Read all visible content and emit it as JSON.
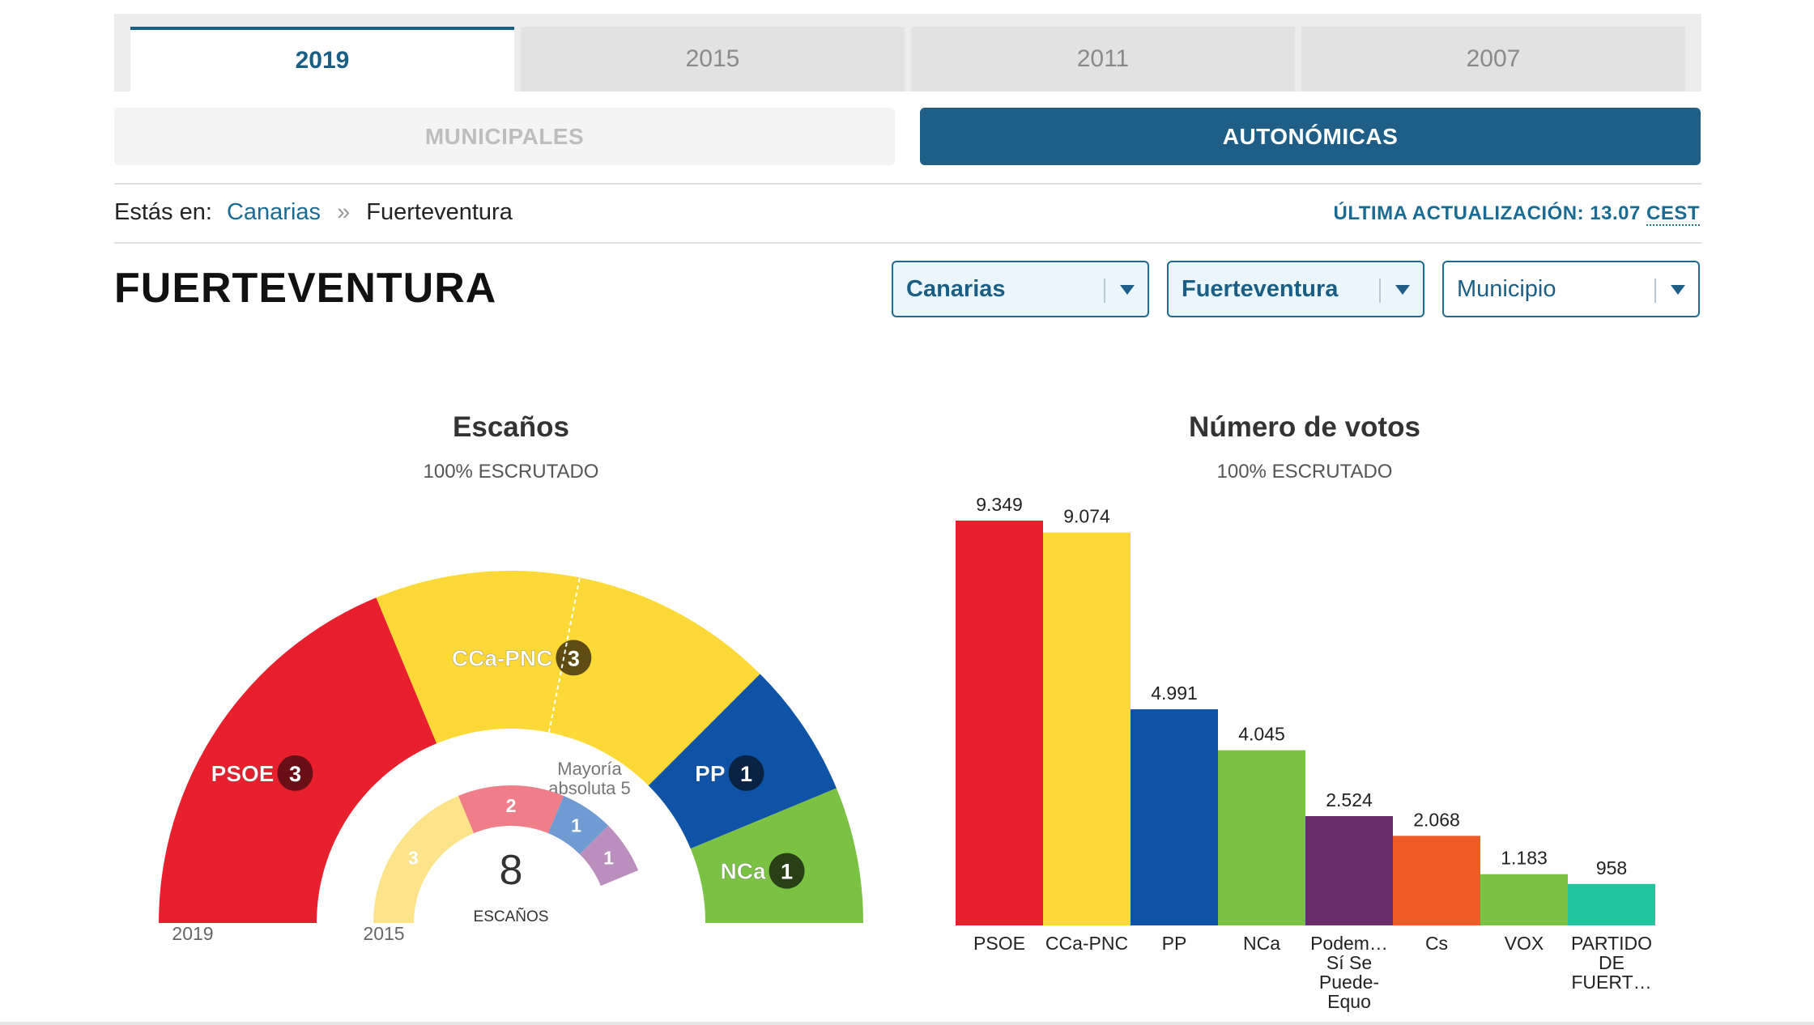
{
  "years": [
    "2019",
    "2015",
    "2011",
    "2007"
  ],
  "elections": {
    "municipales": "MUNICIPALES",
    "autonomicas": "AUTONÓMICAS"
  },
  "breadcrumb": {
    "prefix": "Estás en:",
    "link": "Canarias",
    "sep": "»",
    "current": "Fuerteventura"
  },
  "updated": {
    "label": "ÚLTIMA ACTUALIZACIÓN: 13.07",
    "tz": "CEST"
  },
  "title": "FUERTEVENTURA",
  "selects": [
    {
      "value": "Canarias"
    },
    {
      "value": "Fuerteventura"
    },
    {
      "value": "Municipio"
    }
  ],
  "colors": {
    "accent": "#1f5e86",
    "PSOE": "#e8202e",
    "CCa-PNC": "#fcd936",
    "PP": "#0e53a5",
    "NCa": "#7bc143",
    "Podemos": "#6a2e6a",
    "Cs": "#f05a24",
    "VOX": "#7bc143",
    "PFUER": "#22c4a0"
  },
  "chart_data": [
    {
      "type": "parliament",
      "title": "Escaños",
      "subtitle": "100% ESCRUTADO",
      "total_seats": 8,
      "total_label": "ESCAÑOS",
      "majority_label": [
        "Mayoría",
        "absoluta 5"
      ],
      "outer_ring_label": "2019",
      "inner_ring_label": "2015",
      "seats_2019": [
        {
          "party": "PSOE",
          "seats": 3,
          "color": "#e8202e",
          "badge": "#6b0f16"
        },
        {
          "party": "CCa-PNC",
          "seats": 3,
          "color": "#fcd936",
          "badge": "#5e4c12"
        },
        {
          "party": "PP",
          "seats": 1,
          "color": "#0e53a5",
          "badge": "#0b2343"
        },
        {
          "party": "NCa",
          "seats": 1,
          "color": "#7bc143",
          "badge": "#283f18"
        }
      ],
      "seats_2015": [
        {
          "seats": 3,
          "color": "#fde48a"
        },
        {
          "seats": 2,
          "color": "#f07e88"
        },
        {
          "seats": 1,
          "color": "#6f9bd2"
        },
        {
          "seats": 1,
          "color": "#bb8fbd"
        }
      ]
    },
    {
      "type": "bar",
      "title": "Número de votos",
      "subtitle": "100% ESCRUTADO",
      "series": [
        {
          "label": "PSOE",
          "value": 9349,
          "value_label": "9.349",
          "color": "#e8202e"
        },
        {
          "label": "CCa-PNC",
          "value": 9074,
          "value_label": "9.074",
          "color": "#fcd936"
        },
        {
          "label": "PP",
          "value": 4991,
          "value_label": "4.991",
          "color": "#0e53a5"
        },
        {
          "label": "NCa",
          "value": 4045,
          "value_label": "4.045",
          "color": "#7bc143"
        },
        {
          "label": "Podem… Sí Se Puede-Equo",
          "lines": [
            "Podem…",
            "Sí Se",
            "Puede-",
            "Equo"
          ],
          "value": 2524,
          "value_label": "2.524",
          "color": "#6a2e6a"
        },
        {
          "label": "Cs",
          "value": 2068,
          "value_label": "2.068",
          "color": "#f05a24"
        },
        {
          "label": "VOX",
          "value": 1183,
          "value_label": "1.183",
          "color": "#7bc143"
        },
        {
          "label": "PARTIDO DE FUERT…",
          "lines": [
            "PARTIDO",
            "DE",
            "FUERT…"
          ],
          "value": 958,
          "value_label": "958",
          "color": "#22c4a0"
        }
      ]
    }
  ]
}
